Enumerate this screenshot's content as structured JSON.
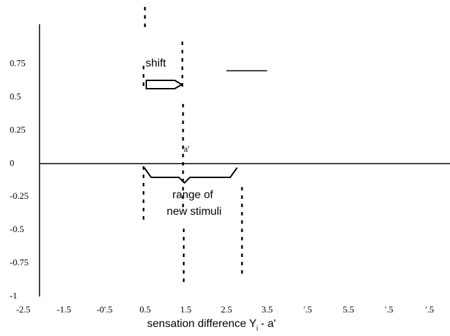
{
  "chart_data": {
    "type": "line",
    "xlabel": "sensation difference Y",
    "xlabel_sub": "i",
    "xlabel_tail": "- a'",
    "annotations": [
      "shift",
      "a'",
      "range of",
      "new stimuli"
    ],
    "xlim": [
      -2.1,
      8.0
    ],
    "ylim": [
      -1,
      1.05
    ],
    "xticks": [
      -2.5,
      -1.5,
      {
        "value": -0.5,
        "label": "-0'.5"
      },
      0.5,
      1.5,
      2.5,
      3.5,
      {
        "value": 4.5,
        "label": "'.5"
      },
      5.5,
      {
        "value": 6.5,
        "label": "'.5"
      },
      {
        "value": 7.5,
        "label": "'.5"
      }
    ],
    "yticks": [
      0.75,
      0.5,
      0.25,
      0,
      -0.25,
      -0.5,
      -0.75,
      -1
    ],
    "x": [
      2.5,
      3.5
    ],
    "series": [
      {
        "color": "#000000",
        "values": [
          0.7,
          0.7
        ]
      }
    ]
  }
}
